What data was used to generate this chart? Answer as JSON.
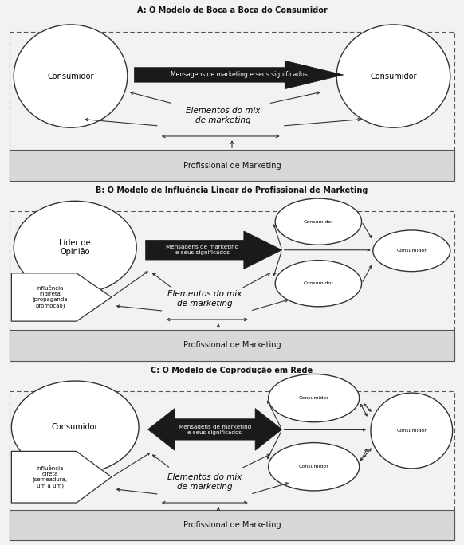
{
  "title_A": "A: O Modelo de Boca a Boca do Consumidor",
  "title_B": "B: O Modelo de Influência Linear do Profissional de Marketing",
  "title_C": "C: O Modelo de Coprodução em Rede",
  "label_consumidor": "Consumidor",
  "label_lider": "Líder de\nOpinião",
  "label_mensagens_A": "Mensagens de marketing e seus significados",
  "label_mensagens_BC": "Mensagens de marketing\ne seus significados",
  "label_elementos": "Elementos do mix\nde marketing",
  "label_profissional": "Profissional de Marketing",
  "label_influencia_indireta": "Influência\nIndireta\n(propaganda\npromoção)",
  "label_influencia_direta": "Influência\ndireta\n(semeadura,\num a um)",
  "bg_color": "#ffffff",
  "dark": "#1a1a1a",
  "gray": "#c8c8c8",
  "border": "#555555"
}
